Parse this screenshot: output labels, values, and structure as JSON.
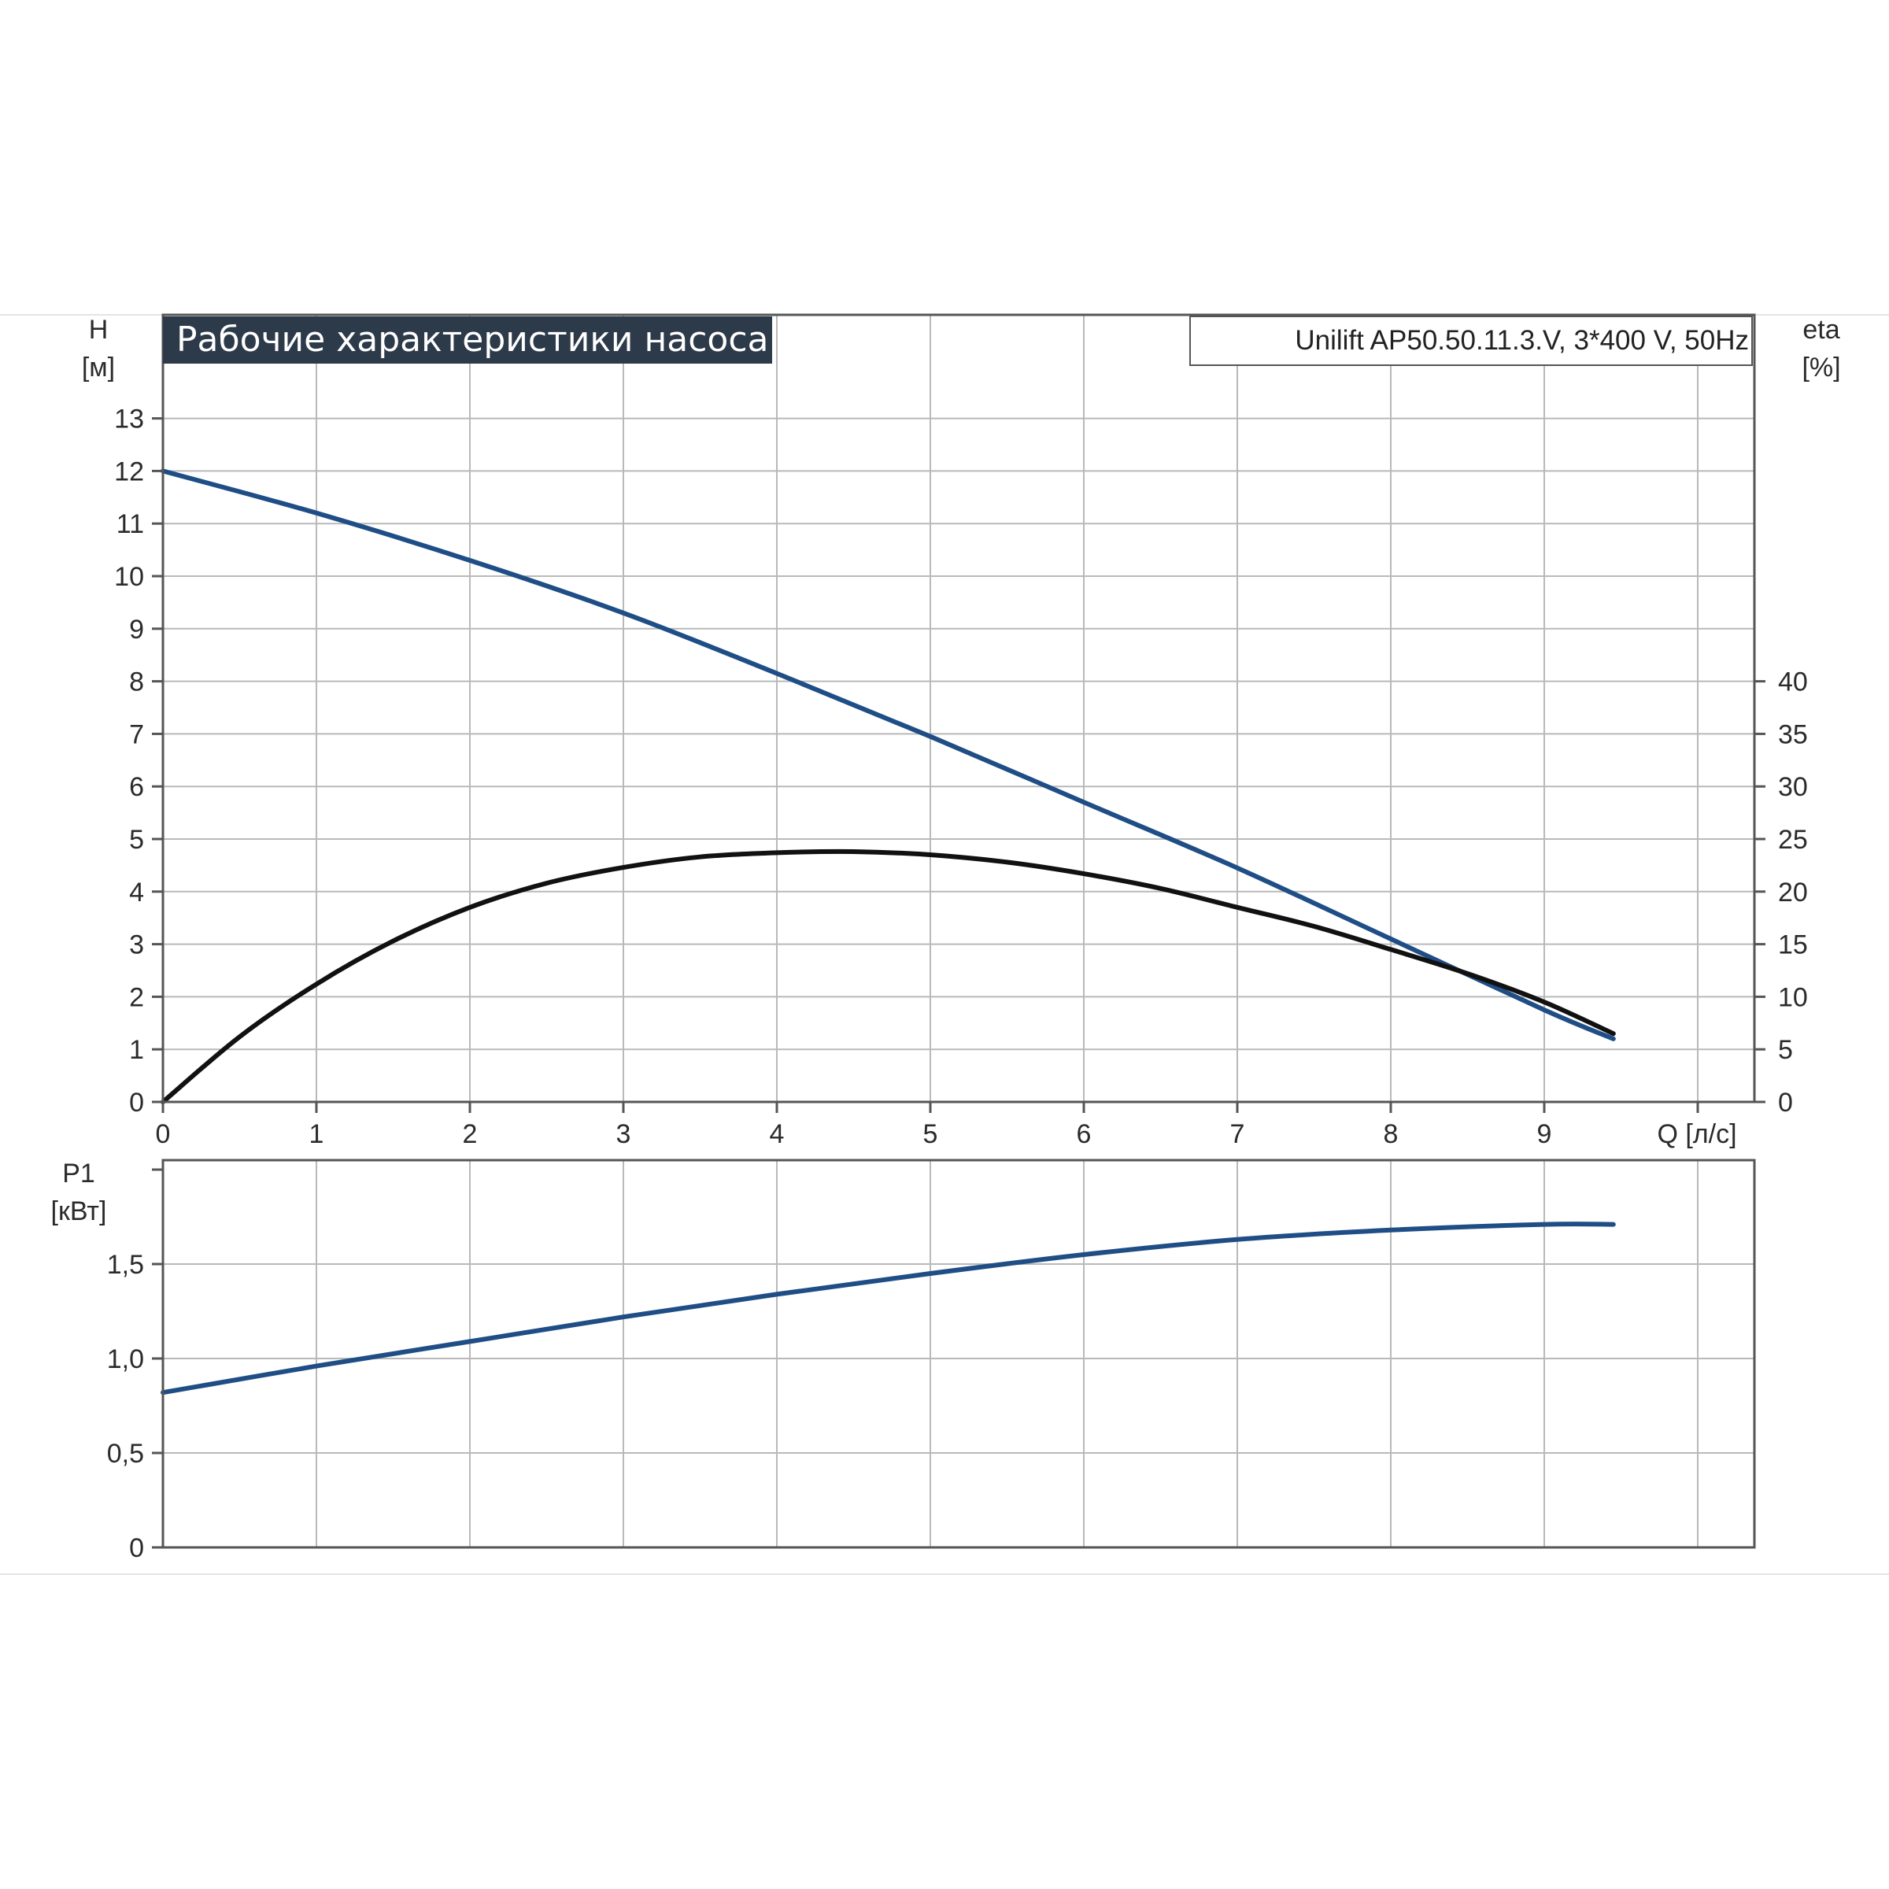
{
  "chart_data": [
    {
      "type": "line",
      "title": "Рабочие характеристики насоса",
      "subtitle": "Unilift AP50.50.11.3.V, 3*400 V, 50Hz",
      "xlabel": "Q [л/с]",
      "ylabel": "H",
      "ylabel_unit": "[м]",
      "y2label": "eta",
      "y2label_unit": "[%]",
      "xlim": [
        0,
        10.4
      ],
      "ylim": [
        0,
        14
      ],
      "y2lim": [
        0,
        70
      ],
      "x_ticks": [
        "0",
        "1",
        "2",
        "3",
        "4",
        "5",
        "6",
        "7",
        "8",
        "9"
      ],
      "y_ticks": [
        "0",
        "1",
        "2",
        "3",
        "4",
        "5",
        "6",
        "7",
        "8",
        "9",
        "10",
        "11",
        "12",
        "13"
      ],
      "y2_ticks": [
        "0",
        "5",
        "10",
        "15",
        "20",
        "25",
        "30",
        "35",
        "40"
      ],
      "grid": true,
      "colors": {
        "head": "#1f4e86",
        "efficiency": "#111111",
        "title_bg": "#2d3a4a"
      },
      "series": [
        {
          "key": "head",
          "axis": "left",
          "x": [
            0,
            1,
            2,
            3,
            4,
            5,
            6,
            7,
            8,
            9,
            9.45
          ],
          "values": [
            12.0,
            11.2,
            10.3,
            9.3,
            8.15,
            6.95,
            5.7,
            4.45,
            3.1,
            1.75,
            1.2
          ]
        },
        {
          "key": "efficiency",
          "axis": "right",
          "x": [
            0,
            0.5,
            1,
            1.5,
            2,
            2.5,
            3,
            3.5,
            4,
            4.5,
            5,
            5.5,
            6,
            6.5,
            7,
            7.5,
            8,
            8.5,
            9,
            9.45
          ],
          "values": [
            0,
            6.2,
            11.2,
            15.3,
            18.5,
            20.8,
            22.3,
            23.3,
            23.7,
            23.8,
            23.5,
            22.8,
            21.7,
            20.3,
            18.5,
            16.7,
            14.5,
            12.2,
            9.5,
            6.5
          ]
        }
      ]
    },
    {
      "type": "line",
      "title": "",
      "xlabel": "",
      "ylabel": "P1",
      "ylabel_unit": "[кВт]",
      "xlim": [
        0,
        10.4
      ],
      "ylim": [
        0,
        2.0
      ],
      "y_ticks": [
        "0",
        "0,5",
        "1,0",
        "1,5"
      ],
      "y_tick_values": [
        0,
        0.5,
        1.0,
        1.5
      ],
      "grid": true,
      "series": [
        {
          "key": "power",
          "x": [
            0,
            1,
            2,
            3,
            4,
            5,
            6,
            7,
            8,
            9,
            9.45
          ],
          "values": [
            0.82,
            0.96,
            1.09,
            1.22,
            1.34,
            1.45,
            1.55,
            1.63,
            1.68,
            1.71,
            1.71
          ]
        }
      ]
    }
  ]
}
